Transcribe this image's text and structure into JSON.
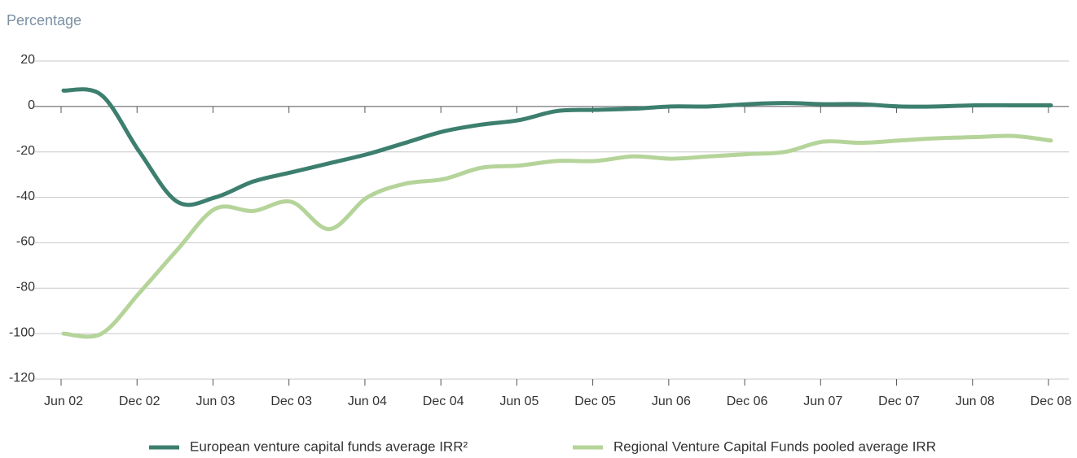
{
  "chart_data": {
    "type": "line",
    "y_axis_label": "Percentage",
    "categories": [
      "Jun 02",
      null,
      "Dec 02",
      null,
      "Jun 03",
      null,
      "Dec 03",
      null,
      "Jun 04",
      null,
      "Dec 04",
      null,
      "Jun 05",
      null,
      "Dec 05",
      null,
      "Jun 06",
      null,
      "Dec 06",
      null,
      "Jun 07",
      null,
      "Dec 07",
      null,
      "Jun 08",
      null,
      "Dec 08"
    ],
    "series": [
      {
        "name": "European venture capital funds average IRR²",
        "color": "#3d7f6e",
        "values": [
          7,
          5,
          -20,
          -42,
          -40,
          -33,
          -29,
          -25,
          -21,
          -16,
          -11,
          -8,
          -6,
          -2,
          -1.5,
          -1,
          0,
          0,
          1,
          1.5,
          1,
          1,
          0,
          0,
          0.5,
          0.5,
          0.5
        ]
      },
      {
        "name": "Regional Venture Capital Funds pooled average IRR",
        "color": "#b5d49a",
        "values": [
          -100,
          -100,
          -82,
          -63,
          -45,
          -46,
          -42,
          -54,
          -40,
          -34,
          -32,
          -27,
          -26,
          -24,
          -24,
          -22,
          -23,
          -22,
          -21,
          -20,
          -15.5,
          -16,
          -15,
          -14,
          -13.5,
          -13,
          -15
        ]
      }
    ],
    "ylim": [
      -120,
      20
    ],
    "yticks": [
      -120,
      -100,
      -80,
      -60,
      -40,
      -20,
      0,
      20
    ],
    "grid": true,
    "legend": "bottom"
  }
}
